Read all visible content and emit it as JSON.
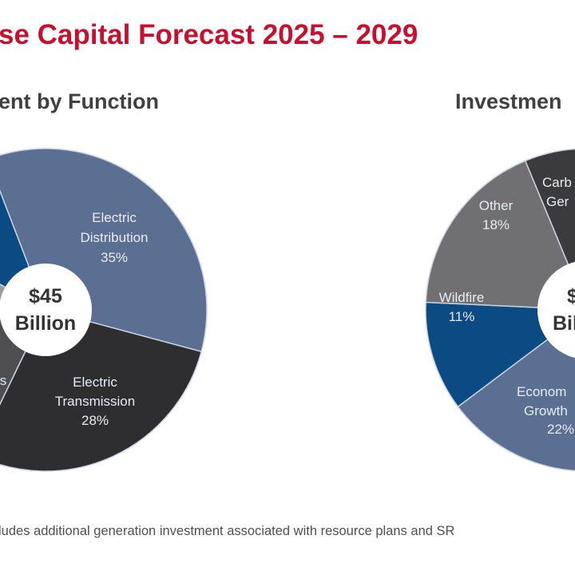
{
  "title": "se Capital Forecast 2025 – 2029",
  "footnote": "ludes additional generation investment associated with resource plans and SR",
  "colors": {
    "title": "#c8102e",
    "slate_blue": "#5b6f93",
    "dark": "#2e2e31",
    "navy": "#0b4a82",
    "gray": "#6f6f71",
    "light_gray": "#9c9c9e"
  },
  "chart_data": [
    {
      "type": "pie",
      "title": "ent by Function",
      "center_label": [
        "$45",
        "Billion"
      ],
      "slices": [
        {
          "label": [
            "Electric",
            "Distribution",
            "35%"
          ],
          "value": 35,
          "color": "#5b6f93"
        },
        {
          "label": [
            "Electric",
            "Transmission",
            "28%"
          ],
          "value": 28,
          "color": "#2e2e31"
        },
        {
          "label": [
            "s"
          ],
          "value": 16,
          "color": "#4f4f52"
        },
        {
          "label": [],
          "value": 10,
          "color": "#9c9c9e"
        },
        {
          "label": [],
          "value": 11,
          "color": "#0b4a82"
        }
      ]
    },
    {
      "type": "pie",
      "title": "Investmen",
      "center_label": [
        "$",
        "Bil"
      ],
      "slices": [
        {
          "label": [
            "Carb",
            "Ger"
          ],
          "value": 30,
          "color": "#3b3b3e"
        },
        {
          "label": [],
          "value": 19,
          "color": "#5b6f93"
        },
        {
          "label": [
            "Econom",
            "Growth",
            "22%"
          ],
          "value": 22,
          "color": "#5b6f93"
        },
        {
          "label": [
            "Wildfire",
            "11%"
          ],
          "value": 11,
          "color": "#0b4a82"
        },
        {
          "label": [
            "Other",
            "18%"
          ],
          "value": 18,
          "color": "#707072"
        }
      ]
    }
  ]
}
